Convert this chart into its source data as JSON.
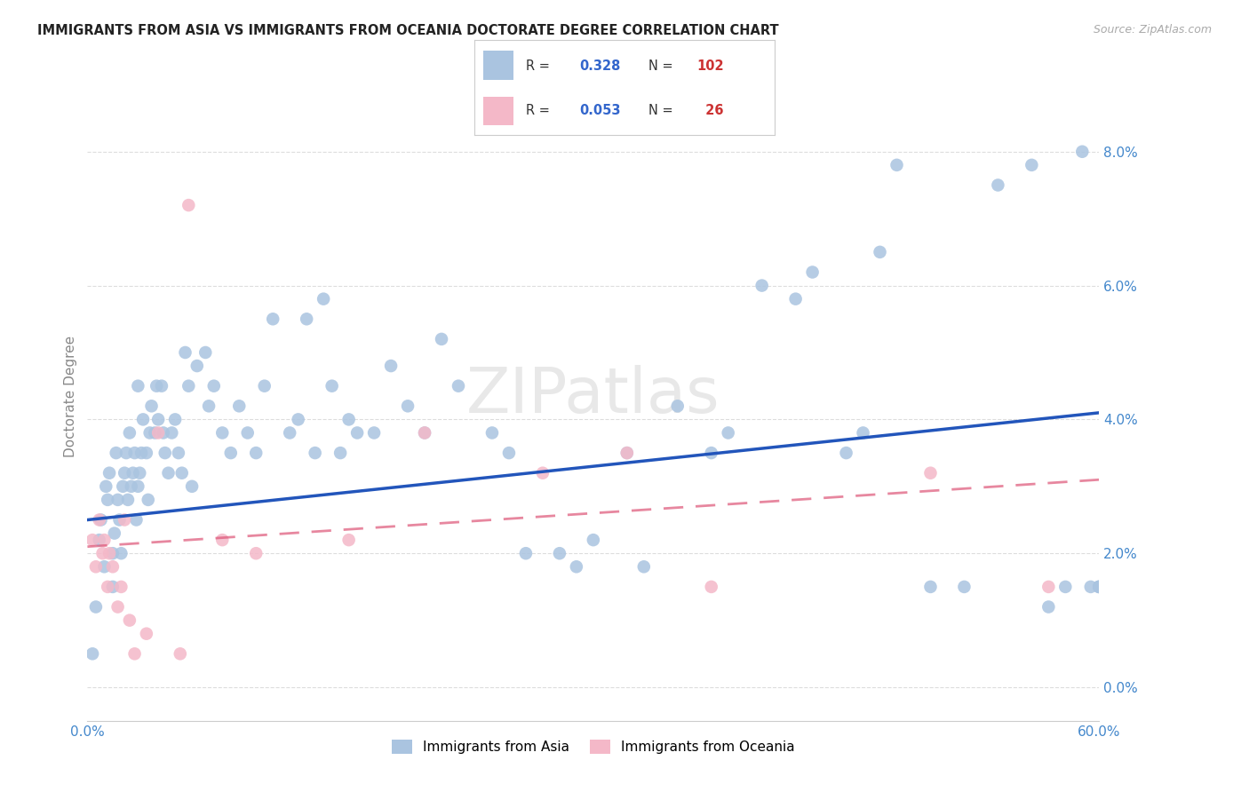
{
  "title": "IMMIGRANTS FROM ASIA VS IMMIGRANTS FROM OCEANIA DOCTORATE DEGREE CORRELATION CHART",
  "source": "Source: ZipAtlas.com",
  "ylabel": "Doctorate Degree",
  "background_color": "#ffffff",
  "grid_color": "#dddddd",
  "watermark": "ZIPatlas",
  "legend_R_asia": "0.328",
  "legend_N_asia": "102",
  "legend_R_oceania": "0.053",
  "legend_N_oceania": "26",
  "asia_color": "#aac4e0",
  "asia_edge_color": "#aac4e0",
  "oceania_color": "#f4b8c8",
  "oceania_edge_color": "#f4b8c8",
  "asia_line_color": "#2255bb",
  "oceania_line_color": "#dd5577",
  "yaxis_label_color": "#4488cc",
  "xaxis_label_color": "#4488cc",
  "xlim": [
    0.0,
    60.0
  ],
  "ylim": [
    -0.5,
    9.2
  ],
  "yticks": [
    0.0,
    2.0,
    4.0,
    6.0,
    8.0
  ],
  "asia_intercept": 2.5,
  "asia_slope_per60": 1.6,
  "oceania_intercept": 2.1,
  "oceania_slope_per60": 1.0,
  "asia_points_x": [
    0.3,
    0.5,
    0.7,
    0.8,
    1.0,
    1.1,
    1.2,
    1.3,
    1.5,
    1.5,
    1.6,
    1.7,
    1.8,
    1.9,
    2.0,
    2.1,
    2.2,
    2.3,
    2.4,
    2.5,
    2.6,
    2.7,
    2.8,
    2.9,
    3.0,
    3.0,
    3.1,
    3.2,
    3.3,
    3.5,
    3.6,
    3.7,
    3.8,
    4.0,
    4.1,
    4.2,
    4.4,
    4.5,
    4.6,
    4.8,
    5.0,
    5.2,
    5.4,
    5.6,
    5.8,
    6.0,
    6.2,
    6.5,
    7.0,
    7.2,
    7.5,
    8.0,
    8.5,
    9.0,
    9.5,
    10.0,
    10.5,
    11.0,
    12.0,
    12.5,
    13.0,
    13.5,
    14.0,
    14.5,
    15.0,
    15.5,
    16.0,
    17.0,
    18.0,
    19.0,
    20.0,
    21.0,
    22.0,
    24.0,
    25.0,
    26.0,
    28.0,
    29.0,
    30.0,
    32.0,
    33.0,
    35.0,
    37.0,
    38.0,
    40.0,
    42.0,
    43.0,
    45.0,
    46.0,
    47.0,
    48.0,
    50.0,
    52.0,
    54.0,
    56.0,
    57.0,
    58.0,
    59.0,
    59.5,
    60.0,
    60.0,
    60.0
  ],
  "asia_points_y": [
    0.5,
    1.2,
    2.2,
    2.5,
    1.8,
    3.0,
    2.8,
    3.2,
    1.5,
    2.0,
    2.3,
    3.5,
    2.8,
    2.5,
    2.0,
    3.0,
    3.2,
    3.5,
    2.8,
    3.8,
    3.0,
    3.2,
    3.5,
    2.5,
    3.0,
    4.5,
    3.2,
    3.5,
    4.0,
    3.5,
    2.8,
    3.8,
    4.2,
    3.8,
    4.5,
    4.0,
    4.5,
    3.8,
    3.5,
    3.2,
    3.8,
    4.0,
    3.5,
    3.2,
    5.0,
    4.5,
    3.0,
    4.8,
    5.0,
    4.2,
    4.5,
    3.8,
    3.5,
    4.2,
    3.8,
    3.5,
    4.5,
    5.5,
    3.8,
    4.0,
    5.5,
    3.5,
    5.8,
    4.5,
    3.5,
    4.0,
    3.8,
    3.8,
    4.8,
    4.2,
    3.8,
    5.2,
    4.5,
    3.8,
    3.5,
    2.0,
    2.0,
    1.8,
    2.2,
    3.5,
    1.8,
    4.2,
    3.5,
    3.8,
    6.0,
    5.8,
    6.2,
    3.5,
    3.8,
    6.5,
    7.8,
    1.5,
    1.5,
    7.5,
    7.8,
    1.2,
    1.5,
    8.0,
    1.5,
    1.5,
    1.5,
    1.5
  ],
  "oceania_points_x": [
    0.3,
    0.5,
    0.7,
    0.9,
    1.0,
    1.2,
    1.3,
    1.5,
    1.8,
    2.0,
    2.2,
    2.5,
    2.8,
    3.5,
    4.2,
    5.5,
    6.0,
    8.0,
    10.0,
    15.5,
    20.0,
    27.0,
    32.0,
    37.0,
    50.0,
    57.0
  ],
  "oceania_points_y": [
    2.2,
    1.8,
    2.5,
    2.0,
    2.2,
    1.5,
    2.0,
    1.8,
    1.2,
    1.5,
    2.5,
    1.0,
    0.5,
    0.8,
    3.8,
    0.5,
    7.2,
    2.2,
    2.0,
    2.2,
    3.8,
    3.2,
    3.5,
    1.5,
    3.2,
    1.5
  ]
}
